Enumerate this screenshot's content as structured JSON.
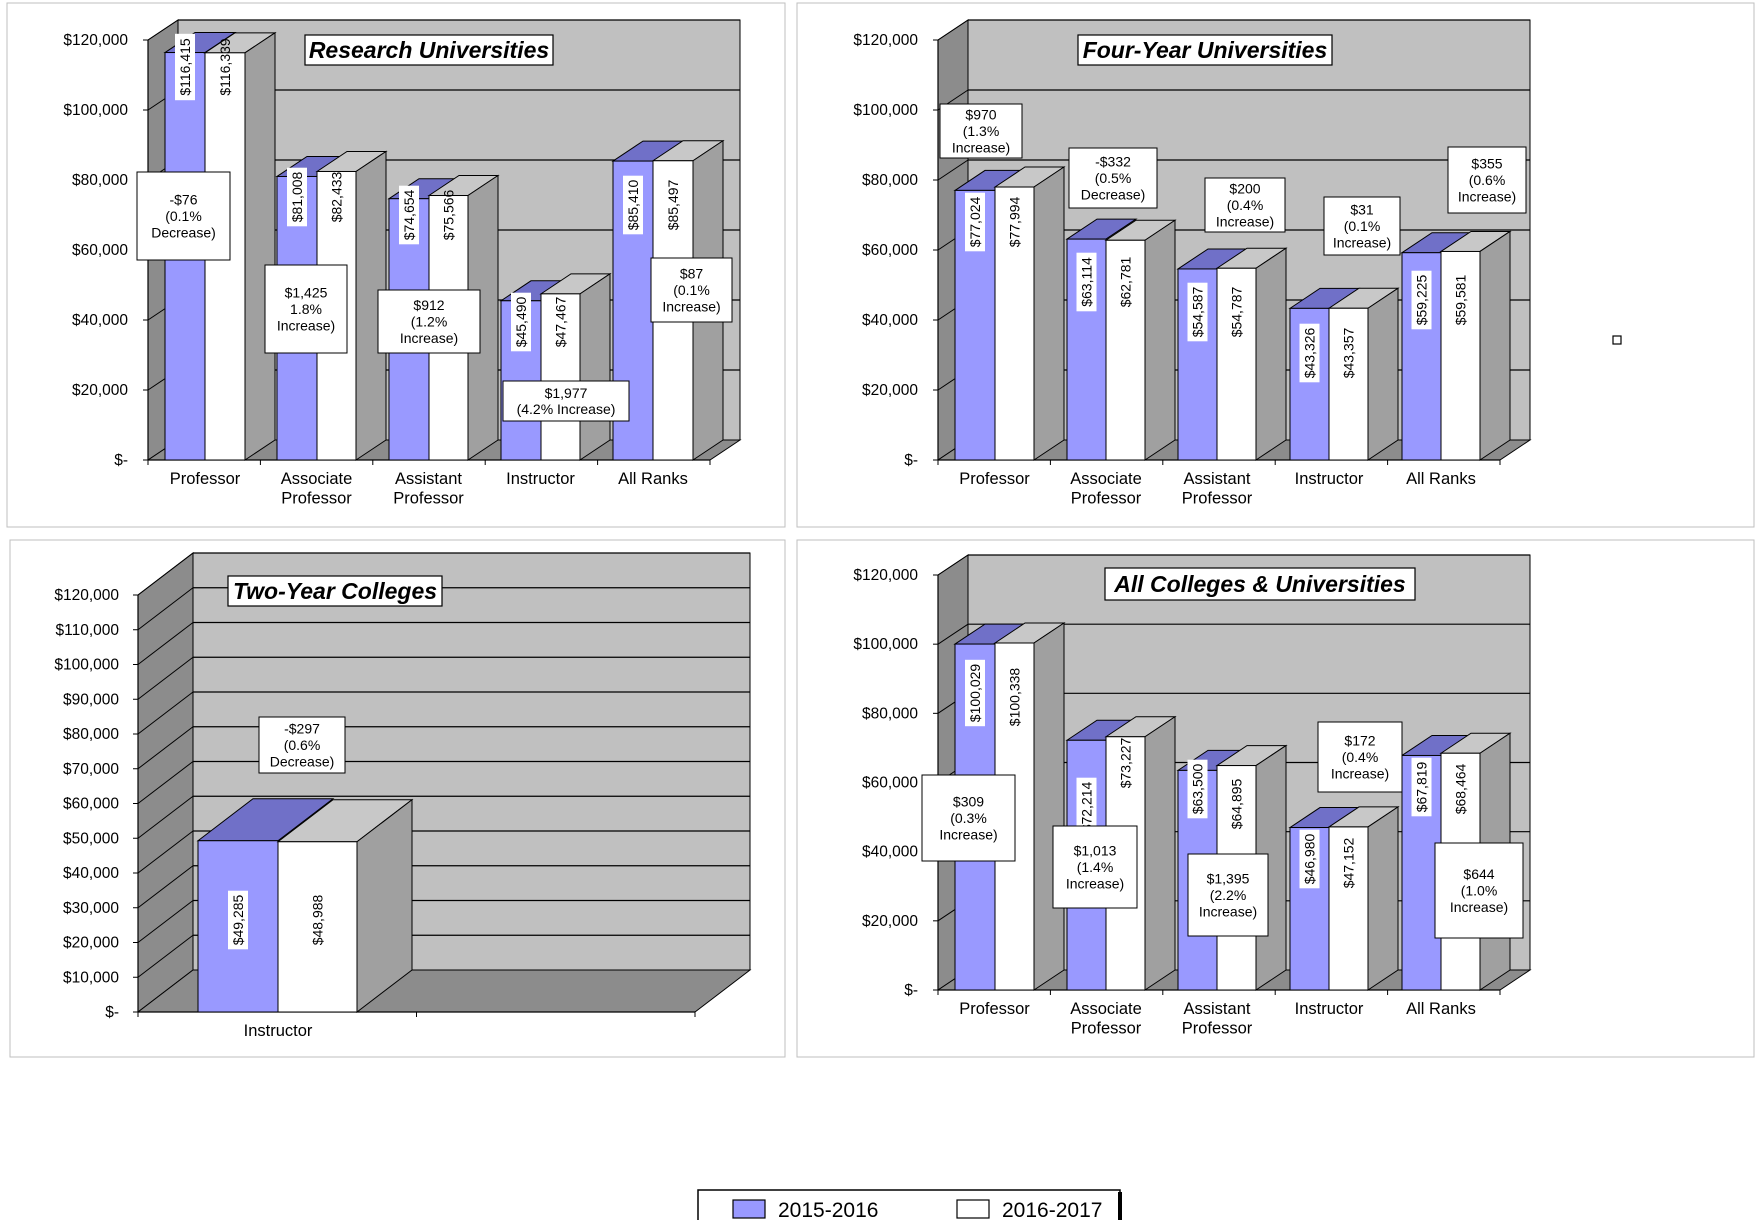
{
  "legend": {
    "items": [
      {
        "label": "2015-2016",
        "color": "#9999ff"
      },
      {
        "label": "2016-2017",
        "color": "#ffffff"
      }
    ]
  },
  "colors": {
    "series_2015": "#9999ff",
    "series_2015_top": "#7070c8",
    "series_2016": "#ffffff",
    "series_2016_top": "#c8c8c8",
    "side": "#a0a0a0",
    "plot_back": "#c0c0c0",
    "plot_left_wall": "#8c8c8c",
    "plot_floor": "#8c8c8c"
  },
  "chart_data": [
    {
      "type": "bar",
      "title": "Research Universities",
      "categories": [
        "Professor",
        "Associate\nProfessor",
        "Assistant\nProfessor",
        "Instructor",
        "All Ranks"
      ],
      "series": [
        {
          "name": "2015-2016",
          "values": [
            116415,
            81008,
            74654,
            45490,
            85410
          ],
          "labels": [
            "$116,415",
            "$81,008",
            "$74,654",
            "$45,490",
            "$85,410"
          ]
        },
        {
          "name": "2016-2017",
          "values": [
            116339,
            82433,
            75566,
            47467,
            85497
          ],
          "labels": [
            "$116,339",
            "$82,433",
            "$75,566",
            "$47,467",
            "$85,497"
          ]
        }
      ],
      "ylim": [
        0,
        120000
      ],
      "yticks": [
        "$-",
        "$20,000",
        "$40,000",
        "$60,000",
        "$80,000",
        "$100,000",
        "$120,000"
      ],
      "annotations": [
        "-$76\n(0.1%\nDecrease)",
        "$1,425\n1.8%\nIncrease)",
        "$912\n(1.2%\nIncrease)",
        "$1,977\n(4.2% Increase)",
        "$87\n(0.1%\nIncrease)"
      ]
    },
    {
      "type": "bar",
      "title": "Four-Year Universities",
      "categories": [
        "Professor",
        "Associate\nProfessor",
        "Assistant\nProfessor",
        "Instructor",
        "All Ranks"
      ],
      "series": [
        {
          "name": "2015-2016",
          "values": [
            77024,
            63114,
            54587,
            43326,
            59225
          ],
          "labels": [
            "$77,024",
            "$63,114",
            "$54,587",
            "$43,326",
            "$59,225"
          ]
        },
        {
          "name": "2016-2017",
          "values": [
            77994,
            62781,
            54787,
            43357,
            59581
          ],
          "labels": [
            "$77,994",
            "$62,781",
            "$54,787",
            "$43,357",
            "$59,581"
          ]
        }
      ],
      "ylim": [
        0,
        120000
      ],
      "yticks": [
        "$-",
        "$20,000",
        "$40,000",
        "$60,000",
        "$80,000",
        "$100,000",
        "$120,000"
      ],
      "annotations": [
        "$970\n(1.3%\nIncrease)",
        "-$332\n(0.5%\nDecrease)",
        "$200\n(0.4%\nIncrease)",
        "$31\n(0.1%\nIncrease)",
        "$355\n(0.6%\nIncrease)"
      ]
    },
    {
      "type": "bar",
      "title": "Two-Year Colleges",
      "categories": [
        "Instructor"
      ],
      "series": [
        {
          "name": "2015-2016",
          "values": [
            49285
          ],
          "labels": [
            "$49,285"
          ]
        },
        {
          "name": "2016-2017",
          "values": [
            48988
          ],
          "labels": [
            "$48,988"
          ]
        }
      ],
      "ylim": [
        0,
        120000
      ],
      "yticks": [
        "$-",
        "$10,000",
        "$20,000",
        "$30,000",
        "$40,000",
        "$50,000",
        "$60,000",
        "$70,000",
        "$80,000",
        "$90,000",
        "$100,000",
        "$110,000",
        "$120,000"
      ],
      "annotations": [
        "-$297\n(0.6%\nDecrease)"
      ]
    },
    {
      "type": "bar",
      "title": "All Colleges & Universities",
      "categories": [
        "Professor",
        "Associate\nProfessor",
        "Assistant\nProfessor",
        "Instructor",
        "All Ranks"
      ],
      "series": [
        {
          "name": "2015-2016",
          "values": [
            100029,
            72214,
            63500,
            46980,
            67819
          ],
          "labels": [
            "$100,029",
            "$72,214",
            "$63,500",
            "$46,980",
            "$67,819"
          ]
        },
        {
          "name": "2016-2017",
          "values": [
            100338,
            73227,
            64895,
            47152,
            68464
          ],
          "labels": [
            "$100,338",
            "$73,227",
            "$64,895",
            "$47,152",
            "$68,464"
          ]
        }
      ],
      "ylim": [
        0,
        120000
      ],
      "yticks": [
        "$-",
        "$20,000",
        "$40,000",
        "$60,000",
        "$80,000",
        "$100,000",
        "$120,000"
      ],
      "annotations": [
        "$309\n(0.3%\nIncrease)",
        "$1,013\n(1.4%\nIncrease)",
        "$1,395\n(2.2%\nIncrease)",
        "$172\n(0.4%\nIncrease)",
        "$644\n(1.0%\nIncrease)"
      ]
    }
  ]
}
